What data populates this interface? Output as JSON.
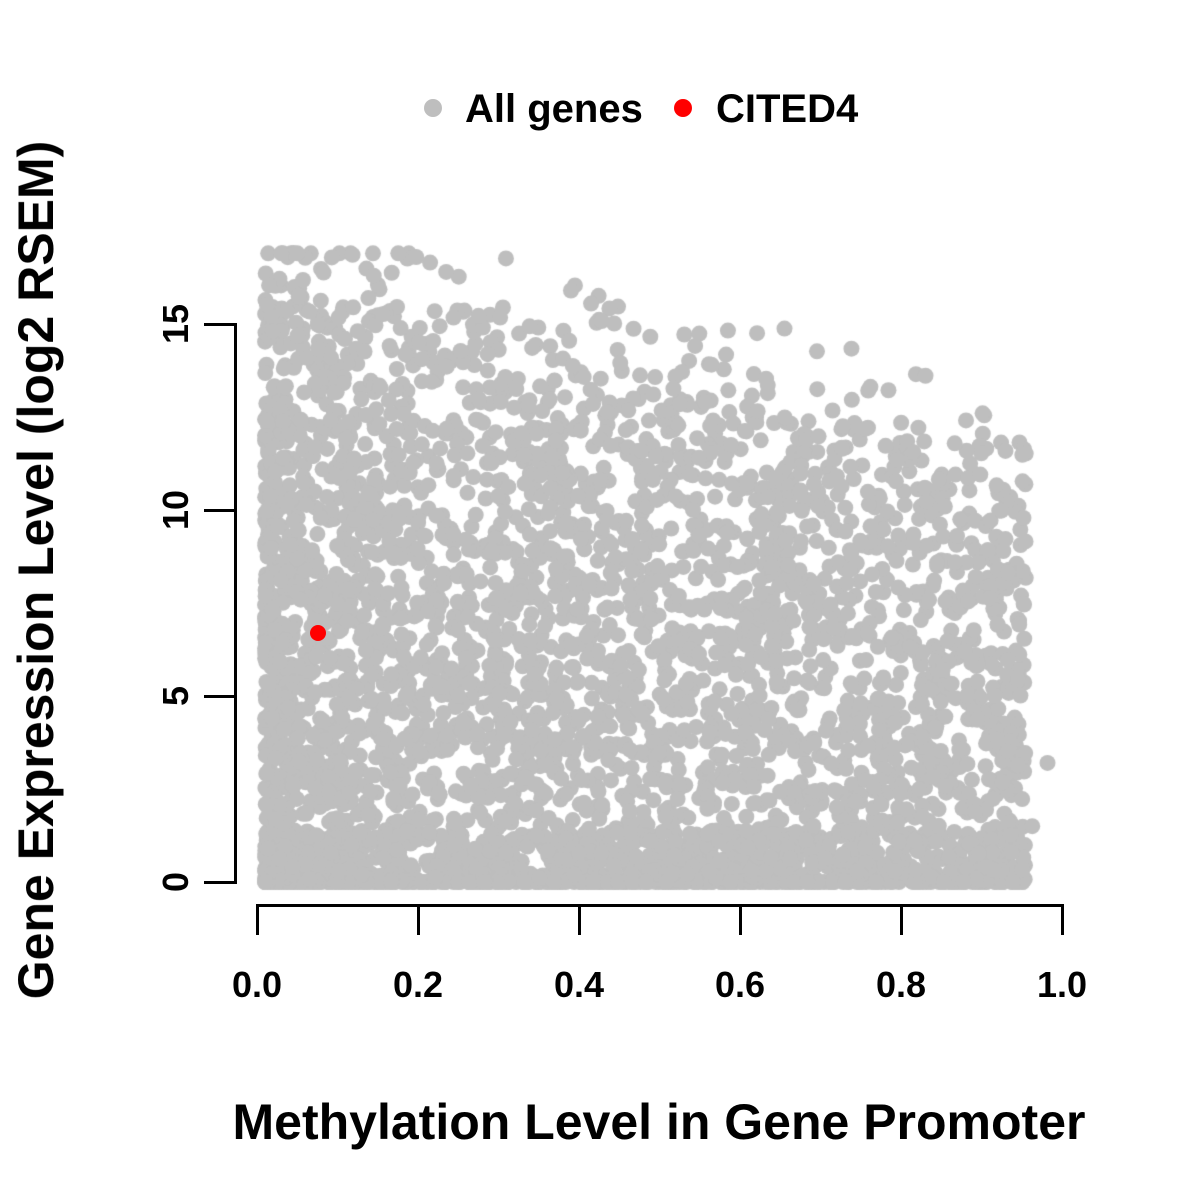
{
  "legend": {
    "items": [
      {
        "label": "All genes",
        "color": "#BEBEBE"
      },
      {
        "label": "CITED4",
        "color": "#FF0000"
      }
    ]
  },
  "axes": {
    "x": {
      "label": "Methylation Level in Gene Promoter",
      "tick_values": [
        0,
        0.2,
        0.4,
        0.6,
        0.8,
        1.0
      ],
      "tick_labels": [
        "0.0",
        "0.2",
        "0.4",
        "0.6",
        "0.8",
        "1.0"
      ],
      "range": [
        0,
        1
      ]
    },
    "y": {
      "label": "Gene Expression Level (log2 RSEM)",
      "tick_values": [
        0,
        5,
        10,
        15
      ],
      "tick_labels": [
        "0",
        "5",
        "10",
        "15"
      ],
      "range": [
        0,
        15
      ]
    }
  },
  "chart_data": {
    "type": "scatter",
    "title": "",
    "xlabel": "Methylation Level in Gene Promoter",
    "ylabel": "Gene Expression Level (log2 RSEM)",
    "xlim": [
      0,
      1
    ],
    "ylim": [
      0,
      17
    ],
    "grid": false,
    "legend_position": "top-center",
    "axis_color": "#000000",
    "series": [
      {
        "name": "All genes",
        "color": "#BEBEBE",
        "marker": "filled-circle",
        "marker_radius_px": 8,
        "n_points_approx": 4500,
        "description": "Very dense cloud of ~thousands of genes. X (promoter methylation) spans 0.01-0.955, heavily skewed toward low methylation; solid mass near x<0.1 over full y range 0-16.8. Upper envelope of expression declines roughly linearly from ~16.6 at x=0 to ~12 at x=0.95. Dense flat band of zero-expression genes along y=0 across all x. Sparse isolated dots above the envelope and at the right edge.",
        "generator": {
          "seed": 1234,
          "n": 4500,
          "x_min": 0.01,
          "x_max": 0.955,
          "x_skew_share": 0.62,
          "x_skew_pow": 1.7,
          "envelope_intercept": 16.55,
          "envelope_slope": -4.8,
          "envelope_jitter": 1.4,
          "zero_share": 0.07,
          "bottom_band_share": 0.14,
          "bottom_band_max": 1.4,
          "body_pow": 0.85,
          "above_share": 0.012,
          "above_max": 1.3,
          "y_clip_max": 16.9
        },
        "outlier_points": [
          [
            0.982,
            3.2
          ],
          [
            0.963,
            1.5
          ],
          [
            0.39,
            15.9
          ],
          [
            0.415,
            15.55
          ],
          [
            0.215,
            16.65
          ],
          [
            0.235,
            16.4
          ],
          [
            0.145,
            16.3
          ]
        ]
      },
      {
        "name": "CITED4",
        "color": "#FF0000",
        "marker": "filled-circle",
        "marker_radius_px": 8,
        "points": [
          [
            0.076,
            6.7
          ]
        ]
      }
    ]
  }
}
